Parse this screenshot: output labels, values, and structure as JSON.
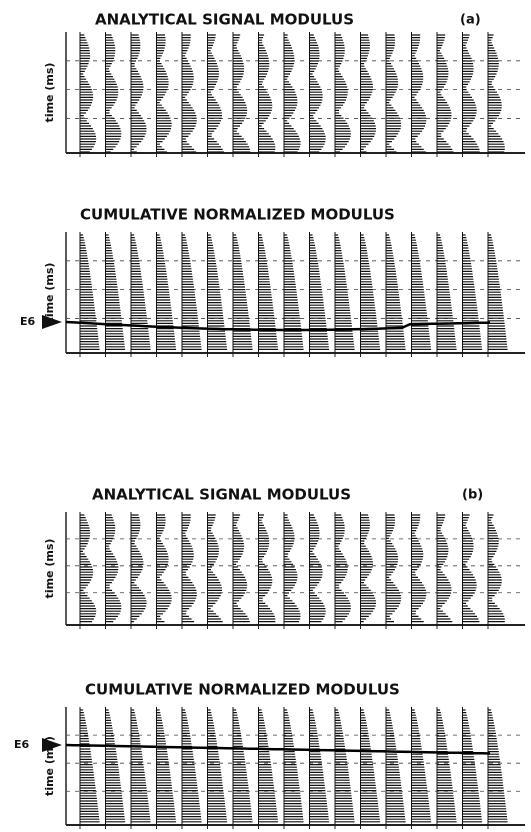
{
  "panels": [
    {
      "title": "ANALYTICAL SIGNAL MODULUS",
      "tag": "(a)",
      "y_label": "time (ms)"
    },
    {
      "title": "CUMULATIVE NORMALIZED MODULUS",
      "y_label": "time (ms)",
      "marker": "E6"
    },
    {
      "title": "ANALYTICAL SIGNAL MODULUS",
      "tag": "(b)",
      "y_label": "time (ms)"
    },
    {
      "title": "CUMULATIVE NORMALIZED MODULUS",
      "y_label": "time (ms)",
      "marker": "E6"
    }
  ]
}
